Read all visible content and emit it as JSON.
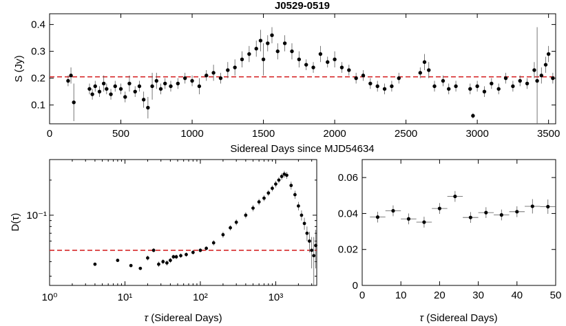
{
  "chart_data": [
    {
      "id": "top",
      "type": "scatter",
      "title": "J0529-0519",
      "xlabel": "Sidereal Days since MJD54634",
      "ylabel": "S (Jy)",
      "xlim": [
        0,
        3550
      ],
      "ylim": [
        0.03,
        0.44
      ],
      "xticks": [
        0,
        500,
        1000,
        1500,
        2000,
        2500,
        3000,
        3500
      ],
      "yticks": [
        0.1,
        0.2,
        0.3,
        0.4
      ],
      "xtick_labels": [
        "0",
        "500",
        "1000",
        "1500",
        "2000",
        "2500",
        "3000",
        "3500"
      ],
      "ytick_labels": [
        "0.1",
        "0.2",
        "0.3",
        "0.4"
      ],
      "reference_line": 0.205,
      "points": [
        [
          130,
          0.19,
          0.02
        ],
        [
          150,
          0.21,
          0.03
        ],
        [
          170,
          0.11,
          0.07
        ],
        [
          280,
          0.16,
          0.02
        ],
        [
          300,
          0.14,
          0.02
        ],
        [
          320,
          0.17,
          0.02
        ],
        [
          350,
          0.15,
          0.02
        ],
        [
          380,
          0.18,
          0.03
        ],
        [
          400,
          0.16,
          0.02
        ],
        [
          430,
          0.14,
          0.02
        ],
        [
          460,
          0.17,
          0.02
        ],
        [
          500,
          0.16,
          0.02
        ],
        [
          530,
          0.13,
          0.02
        ],
        [
          560,
          0.18,
          0.03
        ],
        [
          600,
          0.15,
          0.02
        ],
        [
          630,
          0.17,
          0.02
        ],
        [
          660,
          0.12,
          0.03
        ],
        [
          690,
          0.09,
          0.04
        ],
        [
          720,
          0.17,
          0.05
        ],
        [
          750,
          0.19,
          0.03
        ],
        [
          780,
          0.16,
          0.02
        ],
        [
          810,
          0.18,
          0.02
        ],
        [
          850,
          0.17,
          0.02
        ],
        [
          900,
          0.18,
          0.02
        ],
        [
          950,
          0.2,
          0.02
        ],
        [
          1000,
          0.19,
          0.02
        ],
        [
          1050,
          0.17,
          0.03
        ],
        [
          1100,
          0.21,
          0.02
        ],
        [
          1150,
          0.22,
          0.03
        ],
        [
          1200,
          0.2,
          0.02
        ],
        [
          1250,
          0.23,
          0.03
        ],
        [
          1300,
          0.24,
          0.03
        ],
        [
          1350,
          0.27,
          0.03
        ],
        [
          1400,
          0.29,
          0.03
        ],
        [
          1450,
          0.31,
          0.03
        ],
        [
          1480,
          0.34,
          0.04
        ],
        [
          1500,
          0.27,
          0.06
        ],
        [
          1530,
          0.33,
          0.03
        ],
        [
          1560,
          0.36,
          0.03
        ],
        [
          1600,
          0.3,
          0.03
        ],
        [
          1650,
          0.33,
          0.03
        ],
        [
          1700,
          0.3,
          0.03
        ],
        [
          1750,
          0.27,
          0.03
        ],
        [
          1800,
          0.25,
          0.02
        ],
        [
          1850,
          0.24,
          0.02
        ],
        [
          1900,
          0.29,
          0.03
        ],
        [
          1950,
          0.26,
          0.02
        ],
        [
          2000,
          0.27,
          0.03
        ],
        [
          2050,
          0.24,
          0.02
        ],
        [
          2100,
          0.23,
          0.02
        ],
        [
          2150,
          0.2,
          0.02
        ],
        [
          2200,
          0.21,
          0.02
        ],
        [
          2250,
          0.18,
          0.02
        ],
        [
          2300,
          0.17,
          0.02
        ],
        [
          2350,
          0.16,
          0.02
        ],
        [
          2400,
          0.17,
          0.02
        ],
        [
          2450,
          0.2,
          0.02
        ],
        [
          2600,
          0.22,
          0.02
        ],
        [
          2630,
          0.26,
          0.03
        ],
        [
          2660,
          0.23,
          0.03
        ],
        [
          2700,
          0.17,
          0.02
        ],
        [
          2760,
          0.19,
          0.02
        ],
        [
          2800,
          0.16,
          0.02
        ],
        [
          2850,
          0.17,
          0.02
        ],
        [
          2950,
          0.16,
          0.02
        ],
        [
          2970,
          0.06,
          0.01
        ],
        [
          3000,
          0.17,
          0.02
        ],
        [
          3050,
          0.15,
          0.02
        ],
        [
          3100,
          0.18,
          0.02
        ],
        [
          3150,
          0.16,
          0.02
        ],
        [
          3200,
          0.2,
          0.02
        ],
        [
          3250,
          0.17,
          0.02
        ],
        [
          3300,
          0.19,
          0.02
        ],
        [
          3350,
          0.18,
          0.02
        ],
        [
          3400,
          0.23,
          0.03
        ],
        [
          3420,
          0.19,
          0.2
        ],
        [
          3450,
          0.21,
          0.03
        ],
        [
          3480,
          0.25,
          0.03
        ],
        [
          3500,
          0.29,
          0.03
        ],
        [
          3530,
          0.2,
          0.02
        ]
      ]
    },
    {
      "id": "bottom-left",
      "type": "scatter",
      "xscale": "log",
      "yscale": "log",
      "xlabel_prefix": "τ",
      "xlabel": " (Sidereal Days)",
      "ylabel": "D(τ)",
      "xlim": [
        1,
        3500
      ],
      "ylim": [
        0.025,
        0.3
      ],
      "xticks": [
        1,
        10,
        100,
        1000
      ],
      "xtick_labels": [
        "10⁰",
        "10¹",
        "10²",
        "10³"
      ],
      "ytick_label": "10⁻¹",
      "reference_line": 0.05,
      "points": [
        [
          4,
          0.038,
          0.001
        ],
        [
          8,
          0.041,
          0.001
        ],
        [
          12,
          0.037,
          0.001
        ],
        [
          16,
          0.035,
          0.001
        ],
        [
          20,
          0.043,
          0.002
        ],
        [
          24,
          0.05,
          0.002
        ],
        [
          28,
          0.038,
          0.002
        ],
        [
          32,
          0.04,
          0.002
        ],
        [
          36,
          0.039,
          0.002
        ],
        [
          40,
          0.041,
          0.002
        ],
        [
          44,
          0.044,
          0.002
        ],
        [
          48,
          0.044,
          0.002
        ],
        [
          55,
          0.045,
          0.002
        ],
        [
          65,
          0.046,
          0.002
        ],
        [
          80,
          0.048,
          0.002
        ],
        [
          100,
          0.05,
          0.002
        ],
        [
          120,
          0.052,
          0.002
        ],
        [
          150,
          0.058,
          0.003
        ],
        [
          200,
          0.068,
          0.004
        ],
        [
          250,
          0.078,
          0.004
        ],
        [
          300,
          0.087,
          0.005
        ],
        [
          400,
          0.1,
          0.006
        ],
        [
          500,
          0.115,
          0.007
        ],
        [
          600,
          0.13,
          0.008
        ],
        [
          700,
          0.14,
          0.008
        ],
        [
          800,
          0.155,
          0.009
        ],
        [
          900,
          0.17,
          0.01
        ],
        [
          1000,
          0.185,
          0.012
        ],
        [
          1100,
          0.2,
          0.012
        ],
        [
          1200,
          0.215,
          0.014
        ],
        [
          1300,
          0.225,
          0.015
        ],
        [
          1400,
          0.22,
          0.015
        ],
        [
          1600,
          0.18,
          0.014
        ],
        [
          1800,
          0.15,
          0.012
        ],
        [
          2000,
          0.12,
          0.01
        ],
        [
          2200,
          0.1,
          0.01
        ],
        [
          2400,
          0.085,
          0.01
        ],
        [
          2600,
          0.07,
          0.01
        ],
        [
          2800,
          0.06,
          0.012
        ],
        [
          3000,
          0.05,
          0.015
        ],
        [
          3200,
          0.045,
          0.02
        ],
        [
          3400,
          0.055,
          0.02
        ]
      ]
    },
    {
      "id": "bottom-right",
      "type": "scatter",
      "xlabel_prefix": "τ",
      "xlabel": " (Sidereal Days)",
      "ylabel": "",
      "xlim": [
        0,
        50
      ],
      "ylim": [
        0,
        0.07
      ],
      "xticks": [
        0,
        10,
        20,
        30,
        40,
        50
      ],
      "yticks": [
        0,
        0.02,
        0.04,
        0.06
      ],
      "xtick_labels": [
        "0",
        "10",
        "20",
        "30",
        "40",
        "50"
      ],
      "ytick_labels": [
        "0",
        "0.02",
        "0.04",
        "0.06"
      ],
      "points": [
        [
          4,
          0.038,
          0.003,
          2
        ],
        [
          8,
          0.0415,
          0.003,
          2
        ],
        [
          12,
          0.037,
          0.003,
          2
        ],
        [
          16,
          0.0352,
          0.003,
          2
        ],
        [
          20,
          0.0428,
          0.003,
          2
        ],
        [
          24,
          0.0495,
          0.003,
          2
        ],
        [
          28,
          0.0378,
          0.003,
          2
        ],
        [
          32,
          0.0405,
          0.003,
          2
        ],
        [
          36,
          0.0392,
          0.003,
          2
        ],
        [
          40,
          0.041,
          0.003,
          2
        ],
        [
          44,
          0.044,
          0.004,
          2
        ],
        [
          48,
          0.0438,
          0.004,
          2
        ]
      ]
    }
  ]
}
